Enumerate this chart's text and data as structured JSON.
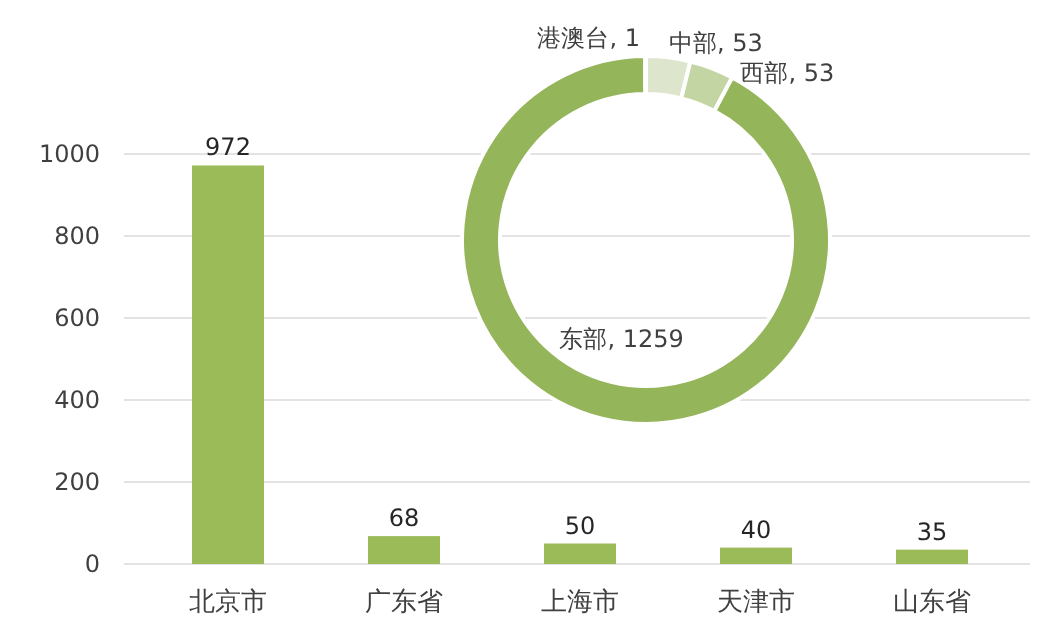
{
  "chart_data": [
    {
      "type": "bar",
      "categories": [
        "北京市",
        "广东省",
        "上海市",
        "天津市",
        "山东省"
      ],
      "values": [
        972,
        68,
        50,
        40,
        35
      ],
      "color": "#9bbb59",
      "ylim": [
        0,
        1000
      ],
      "yticks": [
        0,
        200,
        400,
        600,
        800,
        1000
      ],
      "grid": "y",
      "data_labels": true
    },
    {
      "type": "donut",
      "categories": [
        "中部",
        "西部",
        "东部",
        "港澳台"
      ],
      "values": [
        53,
        53,
        1259,
        1
      ],
      "colors": [
        "#dde6cc",
        "#c3d5a3",
        "#95b55a",
        "#aac47c"
      ],
      "value_labels": [
        ", 53",
        ", 53",
        ", 1259",
        ", 1"
      ]
    }
  ]
}
